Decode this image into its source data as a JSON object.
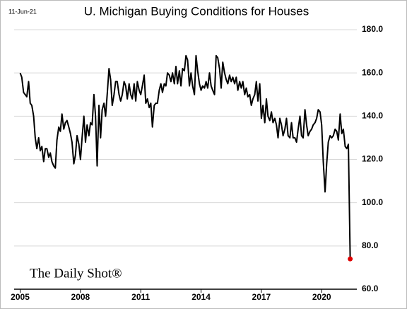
{
  "chart_data": {
    "type": "line",
    "title": "U. Michigan Buying Conditions for Houses",
    "date_label": "11-Jun-21",
    "source": "The Daily Shot®",
    "x": [
      2005.0,
      2005.08,
      2005.17,
      2005.25,
      2005.33,
      2005.42,
      2005.5,
      2005.58,
      2005.67,
      2005.75,
      2005.83,
      2005.92,
      2006.0,
      2006.08,
      2006.17,
      2006.25,
      2006.33,
      2006.42,
      2006.5,
      2006.58,
      2006.67,
      2006.75,
      2006.83,
      2006.92,
      2007.0,
      2007.08,
      2007.17,
      2007.25,
      2007.33,
      2007.42,
      2007.5,
      2007.58,
      2007.67,
      2007.75,
      2007.83,
      2007.92,
      2008.0,
      2008.08,
      2008.17,
      2008.25,
      2008.33,
      2008.42,
      2008.5,
      2008.58,
      2008.67,
      2008.75,
      2008.83,
      2008.92,
      2009.0,
      2009.08,
      2009.17,
      2009.25,
      2009.33,
      2009.42,
      2009.5,
      2009.58,
      2009.67,
      2009.75,
      2009.83,
      2009.92,
      2010.0,
      2010.08,
      2010.17,
      2010.25,
      2010.33,
      2010.42,
      2010.5,
      2010.58,
      2010.67,
      2010.75,
      2010.83,
      2010.92,
      2011.0,
      2011.08,
      2011.17,
      2011.25,
      2011.33,
      2011.42,
      2011.5,
      2011.58,
      2011.67,
      2011.75,
      2011.83,
      2011.92,
      2012.0,
      2012.08,
      2012.17,
      2012.25,
      2012.33,
      2012.42,
      2012.5,
      2012.58,
      2012.67,
      2012.75,
      2012.83,
      2012.92,
      2013.0,
      2013.08,
      2013.17,
      2013.25,
      2013.33,
      2013.42,
      2013.5,
      2013.58,
      2013.67,
      2013.75,
      2013.83,
      2013.92,
      2014.0,
      2014.08,
      2014.17,
      2014.25,
      2014.33,
      2014.42,
      2014.5,
      2014.58,
      2014.67,
      2014.75,
      2014.83,
      2014.92,
      2015.0,
      2015.08,
      2015.17,
      2015.25,
      2015.33,
      2015.42,
      2015.5,
      2015.58,
      2015.67,
      2015.75,
      2015.83,
      2015.92,
      2016.0,
      2016.08,
      2016.17,
      2016.25,
      2016.33,
      2016.42,
      2016.5,
      2016.58,
      2016.67,
      2016.75,
      2016.83,
      2016.92,
      2017.0,
      2017.08,
      2017.17,
      2017.25,
      2017.33,
      2017.42,
      2017.5,
      2017.58,
      2017.67,
      2017.75,
      2017.83,
      2017.92,
      2018.0,
      2018.08,
      2018.17,
      2018.25,
      2018.33,
      2018.42,
      2018.5,
      2018.58,
      2018.67,
      2018.75,
      2018.83,
      2018.92,
      2019.0,
      2019.08,
      2019.17,
      2019.25,
      2019.33,
      2019.42,
      2019.5,
      2019.58,
      2019.67,
      2019.75,
      2019.83,
      2019.92,
      2020.0,
      2020.08,
      2020.17,
      2020.25,
      2020.33,
      2020.42,
      2020.5,
      2020.58,
      2020.67,
      2020.75,
      2020.83,
      2020.92,
      2021.0,
      2021.08,
      2021.17,
      2021.25,
      2021.33,
      2021.42
    ],
    "series": [
      {
        "color": "#000000",
        "values": [
          160,
          158,
          151,
          150,
          149,
          156,
          146,
          145,
          140,
          130,
          125,
          130,
          124,
          126,
          119,
          125,
          125,
          121,
          123,
          119,
          117,
          116,
          129,
          135,
          133,
          141,
          134,
          137,
          138,
          135,
          132,
          128,
          118,
          122,
          131,
          127,
          120,
          130,
          140,
          128,
          136,
          131,
          137,
          136,
          150,
          140,
          117,
          145,
          130,
          143,
          146,
          140,
          150,
          162,
          157,
          145,
          150,
          156,
          156,
          150,
          147,
          150,
          156,
          154,
          148,
          155,
          150,
          148,
          155,
          147,
          156,
          152,
          150,
          154,
          159,
          146,
          148,
          144,
          146,
          135,
          145,
          146,
          146,
          152,
          155,
          151,
          155,
          154,
          160,
          159,
          156,
          160,
          155,
          163,
          155,
          161,
          154,
          162,
          161,
          168,
          166,
          154,
          160,
          154,
          150,
          168,
          161,
          155,
          152,
          154,
          153,
          156,
          153,
          160,
          154,
          152,
          150,
          168,
          167,
          162,
          153,
          165,
          160,
          157,
          155,
          159,
          156,
          158,
          155,
          158,
          152,
          156,
          153,
          156,
          150,
          153,
          149,
          150,
          145,
          148,
          150,
          156,
          147,
          155,
          139,
          145,
          137,
          148,
          140,
          138,
          142,
          137,
          139,
          136,
          130,
          139,
          136,
          131,
          134,
          139,
          131,
          130,
          137,
          130,
          130,
          128,
          134,
          140,
          131,
          130,
          143,
          136,
          131,
          133,
          134,
          136,
          137,
          139,
          143,
          142,
          136,
          119,
          105,
          118,
          128,
          131,
          130,
          131,
          134,
          133,
          129,
          141,
          132,
          134,
          126,
          125,
          127,
          74
        ]
      }
    ],
    "last_point_color": "#e00000",
    "xlim": [
      2004.7,
      2021.75
    ],
    "xticks": [
      2005,
      2008,
      2011,
      2014,
      2017,
      2020
    ],
    "ylim": [
      60,
      180
    ],
    "yticks": [
      {
        "value": 60,
        "label": "60.0"
      },
      {
        "value": 80,
        "label": "80.0"
      },
      {
        "value": 100,
        "label": "100.0"
      },
      {
        "value": 120,
        "label": "120.0"
      },
      {
        "value": 140,
        "label": "140.0"
      },
      {
        "value": 160,
        "label": "160.0"
      },
      {
        "value": 180,
        "label": "180.0"
      }
    ],
    "grid": true
  }
}
